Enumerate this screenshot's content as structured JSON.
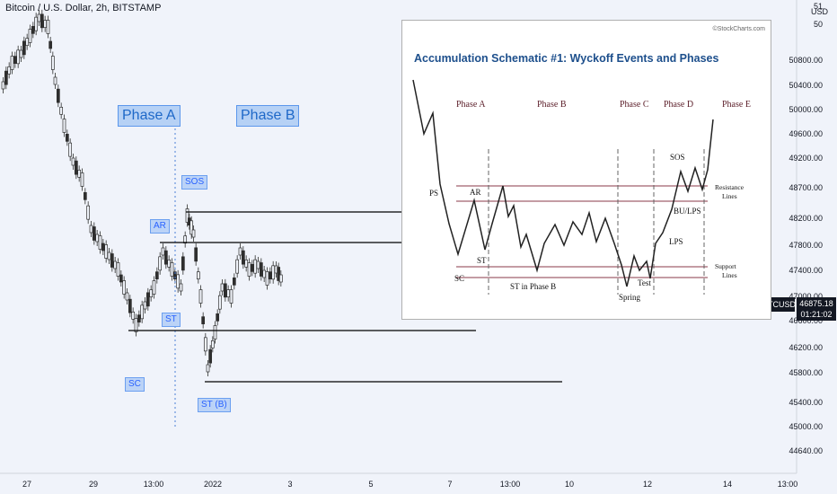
{
  "header": {
    "title": "Bitcoin / U.S. Dollar, 2h, BITSTAMP"
  },
  "axis": {
    "currency": "USD",
    "y_ticks": [
      "50800.00",
      "50400.00",
      "50000.00",
      "49600.00",
      "49200.00",
      "48700.00",
      "48200.00",
      "47800.00",
      "47400.00",
      "47000.00",
      "46600.00",
      "46200.00",
      "45800.00",
      "45400.00",
      "45000.00",
      "44640.00"
    ],
    "x_ticks": [
      "27",
      "29",
      "13:00",
      "2022",
      "3",
      "5",
      "7",
      "13:00",
      "10",
      "12",
      "14",
      "13:00"
    ],
    "top_partial": "51",
    "second_partial": "50"
  },
  "price": {
    "symbol": "BTCUSD",
    "value": "46875.18",
    "countdown": "01:21:02"
  },
  "annotations": {
    "phase_a": "Phase A",
    "phase_b": "Phase B",
    "sos": "SOS",
    "ar": "AR",
    "st": "ST",
    "sc": "SC",
    "st_b": "ST (B)"
  },
  "inset": {
    "title": "Accumulation Schematic #1: Wyckoff Events and Phases",
    "credit": "©StockCharts.com",
    "phases": [
      "Phase A",
      "Phase B",
      "Phase C",
      "Phase D",
      "Phase E"
    ],
    "labels": {
      "ps": "PS",
      "sc": "SC",
      "ar": "AR",
      "st": "ST",
      "st_phase_b": "ST in Phase B",
      "spring": "Spring",
      "test": "Test",
      "sos": "SOS",
      "lps": "LPS",
      "bu_lps": "BU/LPS"
    },
    "resistance_line1": "Resistance",
    "resistance_line2": "Lines",
    "support_line1": "Support",
    "support_line2": "Lines"
  },
  "colors": {
    "up": "#2e2e2e",
    "down": "#2e2e2e",
    "accent": "#2962ff",
    "inset_title": "#1d4f8c"
  }
}
